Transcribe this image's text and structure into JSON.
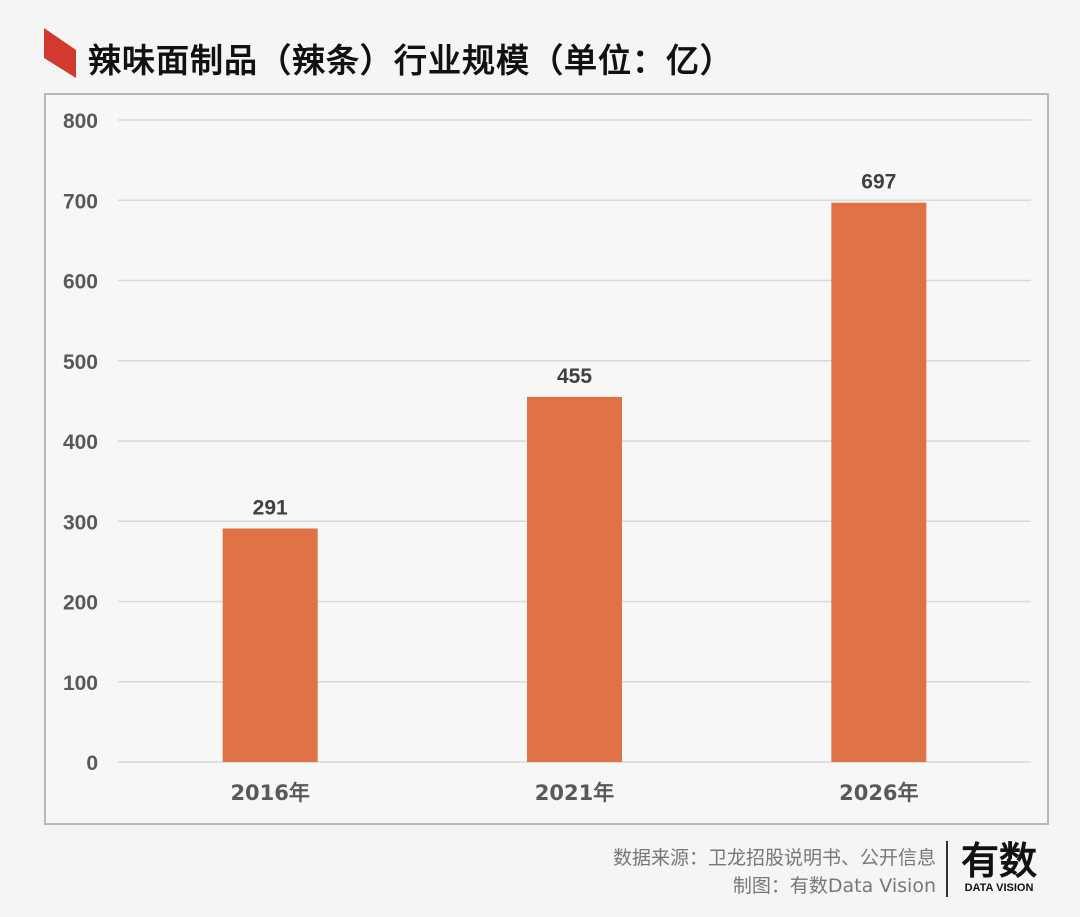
{
  "header": {
    "title": "辣味面制品（辣条）行业规模（单位：亿）",
    "accent_color": "#d23a30"
  },
  "chart_data": {
    "type": "bar",
    "title": "辣味面制品（辣条）行业规模（单位：亿）",
    "categories": [
      "2016年",
      "2021年",
      "2026年"
    ],
    "values": [
      291,
      455,
      697
    ],
    "data_labels": [
      "291",
      "455",
      "697"
    ],
    "xlabel": "",
    "ylabel": "",
    "ylim": [
      0,
      800
    ],
    "yticks": [
      "0",
      "100",
      "200",
      "300",
      "400",
      "500",
      "600",
      "700",
      "800"
    ],
    "grid": true,
    "bar_color": "#e07345"
  },
  "footer": {
    "source": "数据来源：卫龙招股说明书、公开信息",
    "credit": "制图：有数Data Vision"
  },
  "logo": {
    "cn": "有数",
    "en": "DATA VISION"
  }
}
